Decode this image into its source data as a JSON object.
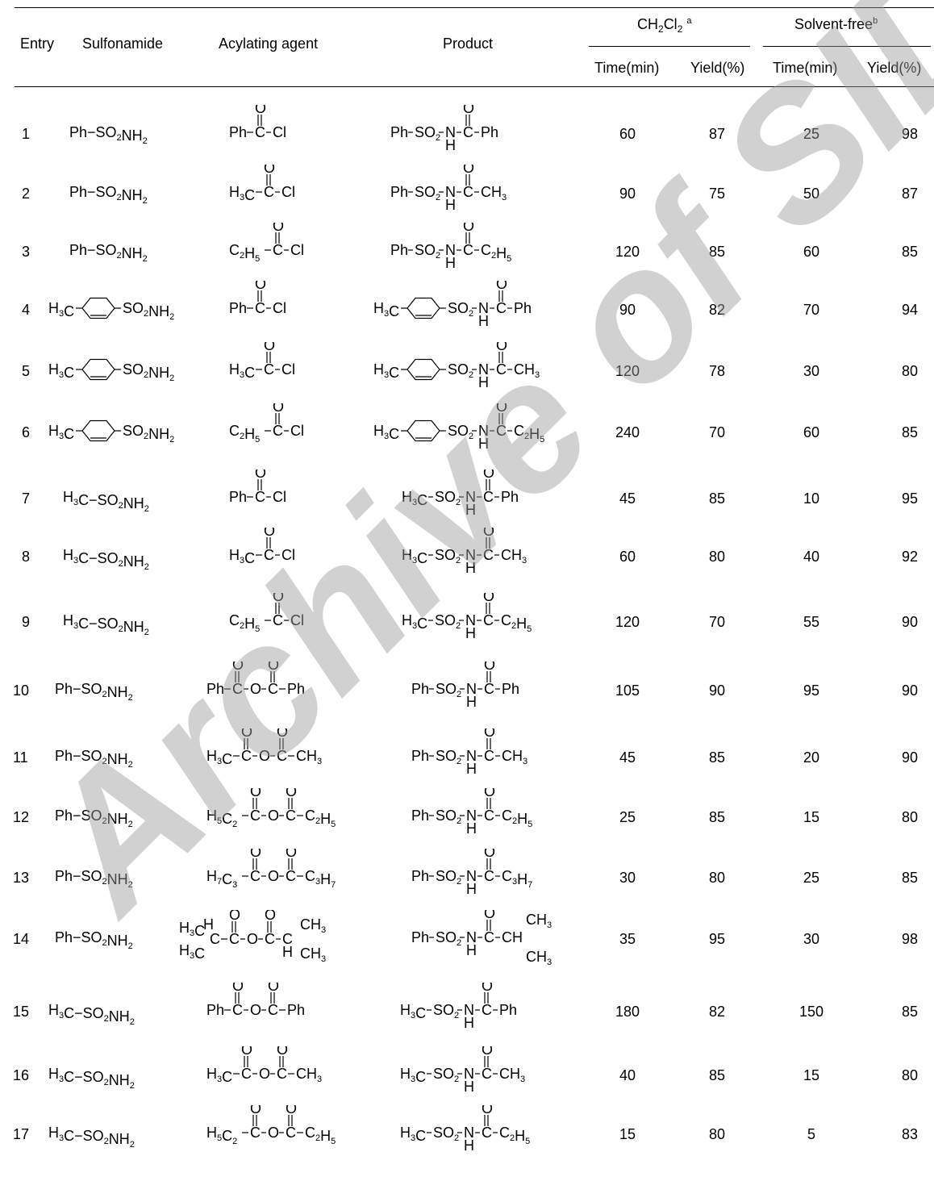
{
  "header": {
    "entry": "Entry",
    "sulfonamide": "Sulfonamide",
    "acylating_agent": "Acylating agent",
    "product": "Product",
    "group1": "CH2Cl2 a",
    "group2": "Solvent-freeb",
    "time": "Time(min)",
    "yield": "Yield(%)"
  },
  "watermark": "Archive of SID",
  "rows": [
    {
      "entry": "1",
      "sulfonamide": "Ph-SO2NH2",
      "agent": "Ph-C(=O)-Cl",
      "product": "Ph-SO2-NH-C(=O)-Ph",
      "t1": "60",
      "y1": "87",
      "t2": "25",
      "y2": "98"
    },
    {
      "entry": "2",
      "sulfonamide": "Ph-SO2NH2",
      "agent": "H3C-C(=O)-Cl",
      "product": "Ph-SO2-NH-C(=O)-CH3",
      "t1": "90",
      "y1": "75",
      "t2": "50",
      "y2": "87"
    },
    {
      "entry": "3",
      "sulfonamide": "Ph-SO2NH2",
      "agent": "C2H5-C(=O)-Cl",
      "product": "Ph-SO2-NH-C(=O)-C2H5",
      "t1": "120",
      "y1": "85",
      "t2": "60",
      "y2": "85"
    },
    {
      "entry": "4",
      "sulfonamide": "H3C-C6H4-SO2NH2",
      "agent": "Ph-C(=O)-Cl",
      "product": "H3C-C6H4-SO2-NH-C(=O)-Ph",
      "t1": "90",
      "y1": "82",
      "t2": "70",
      "y2": "94"
    },
    {
      "entry": "5",
      "sulfonamide": "H3C-C6H4-SO2NH2",
      "agent": "H3C-C(=O)-Cl",
      "product": "H3C-C6H4-SO2-NH-C(=O)-CH3",
      "t1": "120",
      "y1": "78",
      "t2": "30",
      "y2": "80"
    },
    {
      "entry": "6",
      "sulfonamide": "H3C-C6H4-SO2NH2",
      "agent": "C2H5-C(=O)-Cl",
      "product": "H3C-C6H4-SO2-NH-C(=O)-C2H5",
      "t1": "240",
      "y1": "70",
      "t2": "60",
      "y2": "85"
    },
    {
      "entry": "7",
      "sulfonamide": "H3C-SO2NH2",
      "agent": "Ph-C(=O)-Cl",
      "product": "H3C-SO2-NH-C(=O)-Ph",
      "t1": "45",
      "y1": "85",
      "t2": "10",
      "y2": "95"
    },
    {
      "entry": "8",
      "sulfonamide": "H3C-SO2NH2",
      "agent": "H3C-C(=O)-Cl",
      "product": "H3C-SO2-NH-C(=O)-CH3",
      "t1": "60",
      "y1": "80",
      "t2": "40",
      "y2": "92"
    },
    {
      "entry": "9",
      "sulfonamide": "H3C-SO2NH2",
      "agent": "C2H5-C(=O)-Cl",
      "product": "H3C-SO2-NH-C(=O)-C2H5",
      "t1": "120",
      "y1": "70",
      "t2": "55",
      "y2": "90"
    },
    {
      "entry": "10",
      "sulfonamide": "Ph-SO2NH2",
      "agent": "Ph-C(=O)-O-C(=O)-Ph",
      "product": "Ph-SO2-NH-C(=O)-Ph",
      "t1": "105",
      "y1": "90",
      "t2": "95",
      "y2": "90"
    },
    {
      "entry": "11",
      "sulfonamide": "Ph-SO2NH2",
      "agent": "H3C-C(=O)-O-C(=O)-CH3",
      "product": "Ph-SO2-NH-C(=O)-CH3",
      "t1": "45",
      "y1": "85",
      "t2": "20",
      "y2": "90"
    },
    {
      "entry": "12",
      "sulfonamide": "Ph-SO2NH2",
      "agent": "H5C2-C(=O)-O-C(=O)-C2H5",
      "product": "Ph-SO2-NH-C(=O)-C2H5",
      "t1": "25",
      "y1": "85",
      "t2": "15",
      "y2": "80"
    },
    {
      "entry": "13",
      "sulfonamide": "Ph-SO2NH2",
      "agent": "H7C3-C(=O)-O-C(=O)-C3H7",
      "product": "Ph-SO2-NH-C(=O)-C3H7",
      "t1": "30",
      "y1": "80",
      "t2": "25",
      "y2": "85"
    },
    {
      "entry": "14",
      "sulfonamide": "Ph-SO2NH2",
      "agent": "(H3C)2CH-C(=O)-O-C(=O)-CH(CH3)2",
      "product": "Ph-SO2-NH-C(=O)-CH(CH3)2",
      "t1": "35",
      "y1": "95",
      "t2": "30",
      "y2": "98"
    },
    {
      "entry": "15",
      "sulfonamide": "H3C-SO2NH2",
      "agent": "Ph-C(=O)-O-C(=O)-Ph",
      "product": "H3C-SO2-NH-C(=O)-Ph",
      "t1": "180",
      "y1": "82",
      "t2": "150",
      "y2": "85"
    },
    {
      "entry": "16",
      "sulfonamide": "H3C-SO2NH2",
      "agent": "H3C-C(=O)-O-C(=O)-CH3",
      "product": "H3C-SO2-NH-C(=O)-CH3",
      "t1": "40",
      "y1": "85",
      "t2": "15",
      "y2": "80"
    },
    {
      "entry": "17",
      "sulfonamide": "H3C-SO2NH2",
      "agent": "H5C2-C(=O)-O-C(=O)-C2H5",
      "product": "H3C-SO2-NH-C(=O)-C2H5",
      "t1": "15",
      "y1": "80",
      "t2": "5",
      "y2": "83"
    }
  ]
}
